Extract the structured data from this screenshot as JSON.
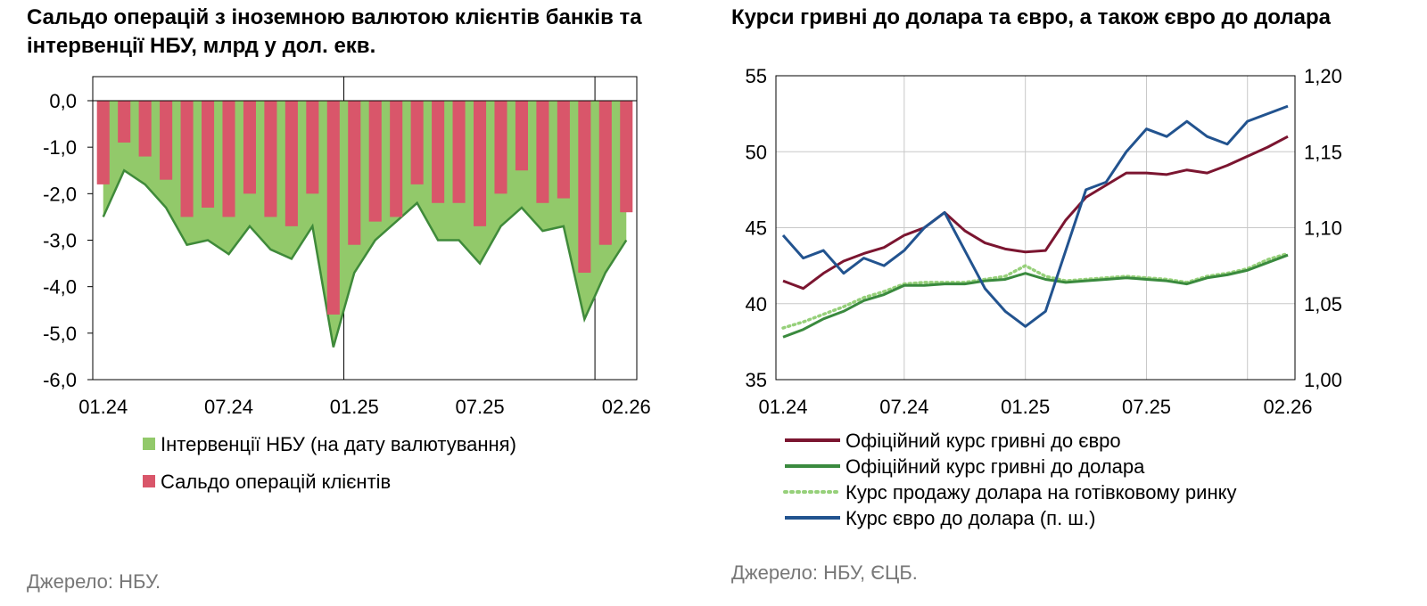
{
  "left": {
    "title": "Сальдо операцій з іноземною валютою клієнтів банків та інтервенції НБУ, млрд у дол. екв.",
    "source": "Джерело: НБУ.",
    "legend": [
      {
        "label": "Інтервенції НБУ (на дату валютування)",
        "color": "#92c96a"
      },
      {
        "label": "Сальдо операцій клієнтів",
        "color": "#d9566a"
      }
    ]
  },
  "right": {
    "title": "Курси гривні до долара та євро, а також євро до долара",
    "source": "Джерело: НБУ, ЄЦБ.",
    "legend": [
      {
        "label": "Офіційний курс гривні до євро",
        "color": "#7b1530",
        "style": "solid"
      },
      {
        "label": "Офіційний курс гривні до долара",
        "color": "#3a8a3e",
        "style": "solid"
      },
      {
        "label": "Курс продажу долара на готівковому ринку",
        "color": "#96d07a",
        "style": "dotted"
      },
      {
        "label": "Курс євро до долара (п. ш.)",
        "color": "#22538f",
        "style": "solid"
      }
    ]
  },
  "chart_data": [
    {
      "type": "bar",
      "title": "Сальдо операцій з іноземною валютою клієнтів банків та інтервенції НБУ, млрд у дол. екв.",
      "x_ticks": [
        "01.24",
        "07.24",
        "01.25",
        "07.25",
        "02.26"
      ],
      "y_ticks": [
        "0,0",
        "-1,0",
        "-2,0",
        "-3,0",
        "-4,0",
        "-5,0",
        "-6,0"
      ],
      "ylim": [
        -6,
        0
      ],
      "categories": [
        "01.24",
        "02.24",
        "03.24",
        "04.24",
        "05.24",
        "06.24",
        "07.24",
        "08.24",
        "09.24",
        "10.24",
        "11.24",
        "12.24",
        "01.25",
        "02.25",
        "03.25",
        "04.25",
        "05.25",
        "06.25",
        "07.25",
        "08.25",
        "09.25",
        "10.25",
        "11.25",
        "12.25",
        "01.26",
        "02.26"
      ],
      "series": [
        {
          "name": "Інтервенції НБУ (на дату валютування)",
          "kind": "area",
          "color": "#92c96a",
          "values": [
            -2.5,
            -1.5,
            -1.8,
            -2.3,
            -3.1,
            -3.0,
            -3.3,
            -2.7,
            -3.2,
            -3.4,
            -2.7,
            -5.3,
            -3.7,
            -3.0,
            -2.6,
            -2.2,
            -3.0,
            -3.0,
            -3.5,
            -2.7,
            -2.3,
            -2.8,
            -2.7,
            -4.7,
            -3.7,
            -3.0
          ]
        },
        {
          "name": "Сальдо операцій клієнтів",
          "kind": "bar",
          "color": "#d9566a",
          "values": [
            -1.8,
            -0.9,
            -1.2,
            -1.7,
            -2.5,
            -2.3,
            -2.5,
            -2.0,
            -2.5,
            -2.7,
            -2.0,
            -4.6,
            -3.1,
            -2.6,
            -2.5,
            -1.8,
            -2.2,
            -2.2,
            -2.7,
            -2.0,
            -1.5,
            -2.2,
            -2.1,
            -3.7,
            -3.1,
            -2.4
          ]
        }
      ],
      "grid": false
    },
    {
      "type": "line",
      "title": "Курси гривні до долара та євро, а також євро до долара",
      "x_ticks": [
        "01.24",
        "07.24",
        "01.25",
        "07.25",
        "02.26"
      ],
      "y_left_ticks": [
        "35",
        "40",
        "45",
        "50",
        "55"
      ],
      "y_right_ticks": [
        "1,00",
        "1,05",
        "1,10",
        "1,15",
        "1,20"
      ],
      "ylim_left": [
        35,
        55
      ],
      "ylim_right": [
        1.0,
        1.2
      ],
      "x": [
        "01.24",
        "02.24",
        "03.24",
        "04.24",
        "05.24",
        "06.24",
        "07.24",
        "08.24",
        "09.24",
        "10.24",
        "11.24",
        "12.24",
        "01.25",
        "02.25",
        "03.25",
        "04.25",
        "05.25",
        "06.25",
        "07.25",
        "08.25",
        "09.25",
        "10.25",
        "11.25",
        "12.25",
        "01.26",
        "02.26"
      ],
      "series": [
        {
          "name": "Офіційний курс гривні до євро",
          "axis": "left",
          "color": "#7b1530",
          "values": [
            41.5,
            41.0,
            42.0,
            42.8,
            43.3,
            43.7,
            44.5,
            45.0,
            46.0,
            44.8,
            44.0,
            43.6,
            43.4,
            43.5,
            45.5,
            47.0,
            47.8,
            48.6,
            48.6,
            48.5,
            48.8,
            48.6,
            49.1,
            49.7,
            50.3,
            51.0
          ]
        },
        {
          "name": "Офіційний курс гривні до долара",
          "axis": "left",
          "color": "#3a8a3e",
          "values": [
            37.8,
            38.3,
            39.0,
            39.5,
            40.2,
            40.6,
            41.2,
            41.2,
            41.3,
            41.3,
            41.5,
            41.6,
            42.0,
            41.6,
            41.4,
            41.5,
            41.6,
            41.7,
            41.6,
            41.5,
            41.3,
            41.7,
            41.9,
            42.2,
            42.7,
            43.2
          ]
        },
        {
          "name": "Курс продажу долара на готівковому ринку",
          "axis": "left",
          "color": "#96d07a",
          "values": [
            38.4,
            38.8,
            39.3,
            39.8,
            40.4,
            40.8,
            41.3,
            41.4,
            41.4,
            41.4,
            41.6,
            41.8,
            42.5,
            41.8,
            41.5,
            41.6,
            41.7,
            41.8,
            41.7,
            41.6,
            41.4,
            41.8,
            42.0,
            42.3,
            42.9,
            43.3
          ]
        },
        {
          "name": "Курс євро до долара (п. ш.)",
          "axis": "right",
          "color": "#22538f",
          "values": [
            1.095,
            1.08,
            1.085,
            1.07,
            1.08,
            1.075,
            1.085,
            1.1,
            1.11,
            1.085,
            1.06,
            1.045,
            1.035,
            1.045,
            1.085,
            1.125,
            1.13,
            1.15,
            1.165,
            1.16,
            1.17,
            1.16,
            1.155,
            1.17,
            1.175,
            1.18
          ]
        }
      ],
      "grid": true
    }
  ]
}
